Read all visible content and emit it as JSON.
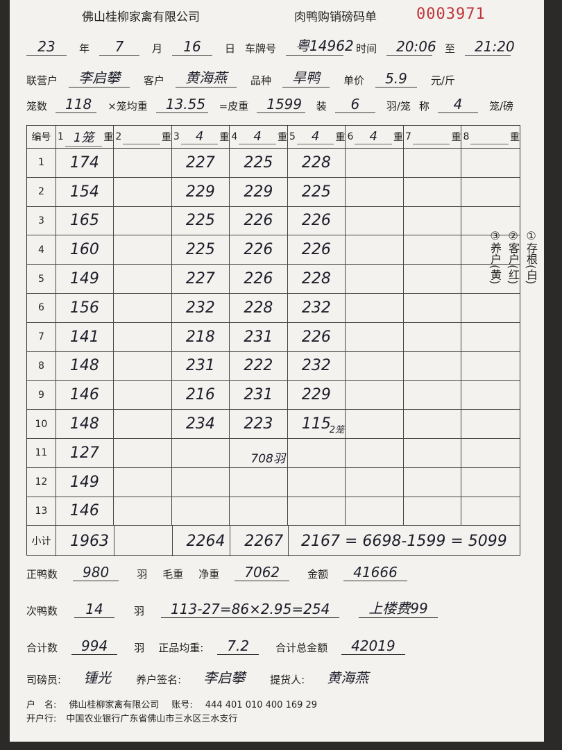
{
  "header": {
    "company": "佛山桂柳家禽有限公司",
    "title": "肉鸭购销磅码单",
    "number": "0003971"
  },
  "info": {
    "lines": [
      [
        {
          "hand": "23"
        },
        {
          "text": "年"
        },
        {
          "hand": "7"
        },
        {
          "text": "月"
        },
        {
          "hand": "16"
        },
        {
          "text": "日"
        },
        {
          "text": "车牌号"
        },
        {
          "hand": "粤14962"
        },
        {
          "text": "时间"
        },
        {
          "hand": "20:06"
        },
        {
          "text": "至"
        },
        {
          "hand": "21:20"
        }
      ],
      [
        {
          "text": "联营户"
        },
        {
          "hand": "李启攀"
        },
        {
          "text": "客户"
        },
        {
          "hand": "黄海燕"
        },
        {
          "text": "品种"
        },
        {
          "hand": "旱鸭"
        },
        {
          "text": "单价"
        },
        {
          "hand": "5.9"
        },
        {
          "text": "元/斤"
        }
      ],
      [
        {
          "text": "笼数"
        },
        {
          "hand": "118"
        },
        {
          "text": "×笼均重"
        },
        {
          "hand": "13.55"
        },
        {
          "text": "=皮重"
        },
        {
          "hand": "1599"
        },
        {
          "text": "装"
        },
        {
          "hand": "6"
        },
        {
          "text": "羽/笼"
        },
        {
          "text": "称"
        },
        {
          "hand": "4"
        },
        {
          "text": "笼/磅"
        }
      ]
    ]
  },
  "table": {
    "id_label": "编号",
    "columns": [
      {
        "no": "1",
        "mark": "1笼",
        "unit": "重"
      },
      {
        "no": "2",
        "mark": null,
        "unit": "重"
      },
      {
        "no": "3",
        "mark": "4",
        "unit": "重"
      },
      {
        "no": "4",
        "mark": "4",
        "unit": "重"
      },
      {
        "no": "5",
        "mark": "4",
        "unit": "重"
      },
      {
        "no": "6",
        "mark": "4",
        "unit": "重"
      },
      {
        "no": "7",
        "mark": null,
        "unit": "重"
      },
      {
        "no": "8",
        "mark": null,
        "unit": "重"
      }
    ],
    "rows": [
      {
        "no": "1",
        "cells": [
          "174",
          null,
          "227",
          "225",
          "228",
          null,
          null,
          null
        ]
      },
      {
        "no": "2",
        "cells": [
          "154",
          null,
          "229",
          "229",
          "225",
          null,
          null,
          null
        ]
      },
      {
        "no": "3",
        "cells": [
          "165",
          null,
          "225",
          "226",
          "226",
          null,
          null,
          null
        ]
      },
      {
        "no": "4",
        "cells": [
          "160",
          null,
          "225",
          "226",
          "226",
          null,
          null,
          null
        ]
      },
      {
        "no": "5",
        "cells": [
          "149",
          null,
          "227",
          "226",
          "228",
          null,
          null,
          null
        ]
      },
      {
        "no": "6",
        "cells": [
          "156",
          null,
          "232",
          "228",
          "232",
          null,
          null,
          null
        ]
      },
      {
        "no": "7",
        "cells": [
          "141",
          null,
          "218",
          "231",
          "226",
          null,
          null,
          null
        ]
      },
      {
        "no": "8",
        "cells": [
          "148",
          null,
          "231",
          "222",
          "232",
          null,
          null,
          null
        ]
      },
      {
        "no": "9",
        "cells": [
          "146",
          null,
          "216",
          "231",
          "229",
          null,
          null,
          null
        ]
      },
      {
        "no": "10",
        "cells": [
          "148",
          null,
          "234",
          "223",
          "115",
          null,
          null,
          null
        ]
      },
      {
        "no": "11",
        "cells": [
          "127",
          null,
          null,
          null,
          null,
          null,
          null,
          null
        ]
      },
      {
        "no": "12",
        "cells": [
          "149",
          null,
          null,
          null,
          null,
          null,
          null,
          null
        ]
      },
      {
        "no": "13",
        "cells": [
          "146",
          null,
          null,
          null,
          null,
          null,
          null,
          null
        ]
      }
    ],
    "row10_note": "2笼",
    "row11_note": "708羽",
    "subtotal": {
      "label": "小计",
      "cells": [
        "1963",
        null,
        "2264",
        "2267"
      ],
      "formula": "2167 = 6698-1599 = 5099"
    }
  },
  "side_notes": [
    "①存根(白)",
    "②客户(红)",
    "③养户(黄)"
  ],
  "footer": {
    "lines": [
      [
        {
          "text": "正鸭数"
        },
        {
          "hand": "980"
        },
        {
          "text": "羽"
        },
        {
          "text": "毛重"
        },
        {
          "text": "净重"
        },
        {
          "hand": "7062"
        },
        {
          "text": "金额"
        },
        {
          "hand": "41666"
        }
      ],
      [
        {
          "text": "次鸭数"
        },
        {
          "hand": "14"
        },
        {
          "text": "羽"
        },
        {
          "hand": "113-27=86×2.95=254"
        },
        {
          "hand": "上楼费99"
        }
      ],
      [
        {
          "text": "合计数"
        },
        {
          "hand": "994"
        },
        {
          "text": "羽"
        },
        {
          "text": "正品均重:"
        },
        {
          "hand": "7.2"
        },
        {
          "text": "合计总金额"
        },
        {
          "hand": "42019"
        }
      ],
      [
        {
          "text": "司磅员:"
        },
        {
          "hand": "锺光"
        },
        {
          "text": "养户签名:"
        },
        {
          "hand": "李启攀"
        },
        {
          "text": "提货人:"
        },
        {
          "hand": "黄海燕"
        }
      ],
      [
        {
          "text": "户　名:"
        },
        {
          "text": "佛山桂柳家禽有限公司"
        },
        {
          "text": "账号:"
        },
        {
          "text": "444 401 010 400 169 29"
        }
      ],
      [
        {
          "text": "开户行:"
        },
        {
          "text": "中国农业银行广东省佛山市三水区三水支行"
        }
      ]
    ]
  }
}
